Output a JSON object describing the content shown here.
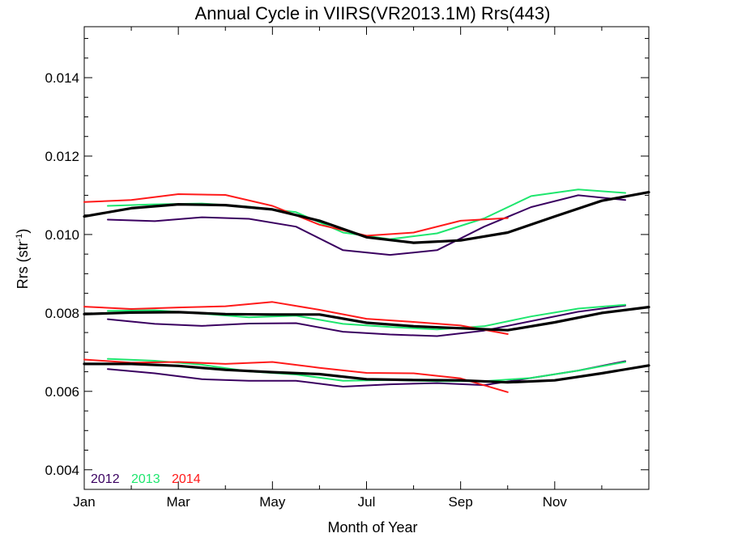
{
  "chart_data": {
    "type": "line",
    "title": "Annual Cycle in VIIRS(VR2013.1M) Rrs(443)",
    "xlabel": "Month of Year",
    "ylabel_main": "Rrs (str",
    "ylabel_sup": "-1",
    "ylabel_close": ")",
    "xlim": [
      0,
      12
    ],
    "ylim": [
      0.0035,
      0.0153
    ],
    "x_ticks": [
      {
        "value": 0,
        "label": "Jan"
      },
      {
        "value": 2,
        "label": "Mar"
      },
      {
        "value": 4,
        "label": "May"
      },
      {
        "value": 6,
        "label": "Jul"
      },
      {
        "value": 8,
        "label": "Sep"
      },
      {
        "value": 10,
        "label": "Nov"
      }
    ],
    "y_ticks": [
      {
        "value": 0.004,
        "label": "0.004"
      },
      {
        "value": 0.006,
        "label": "0.006"
      },
      {
        "value": 0.008,
        "label": "0.008"
      },
      {
        "value": 0.01,
        "label": "0.010"
      },
      {
        "value": 0.012,
        "label": "0.012"
      },
      {
        "value": 0.014,
        "label": "0.014"
      }
    ],
    "legend_position": "bottom-left",
    "series": [
      {
        "name": "2012",
        "color": "#3a0060",
        "width": 2,
        "groups": [
          {
            "x": [
              0.5,
              1.5,
              2.5,
              3.5,
              4.5,
              5.5,
              6.5,
              7.5,
              8.5,
              9.5,
              10.5,
              11.5
            ],
            "y": [
              0.01038,
              0.01034,
              0.01044,
              0.0104,
              0.0102,
              0.0096,
              0.00948,
              0.0096,
              0.0102,
              0.0107,
              0.011,
              0.01088
            ]
          },
          {
            "x": [
              0.5,
              1.5,
              2.5,
              3.5,
              4.5,
              5.5,
              6.5,
              7.5,
              8.5,
              9.5,
              10.5,
              11.5
            ],
            "y": [
              0.00784,
              0.00772,
              0.00767,
              0.00773,
              0.00774,
              0.00752,
              0.00745,
              0.00741,
              0.00755,
              0.00779,
              0.00803,
              0.00819
            ]
          },
          {
            "x": [
              0.5,
              1.5,
              2.5,
              3.5,
              4.5,
              5.5,
              6.5,
              7.5,
              8.5,
              9.5,
              10.5,
              11.5
            ],
            "y": [
              0.00657,
              0.00646,
              0.00631,
              0.00627,
              0.00627,
              0.00612,
              0.00618,
              0.00621,
              0.00616,
              0.00634,
              0.00653,
              0.00677
            ]
          }
        ]
      },
      {
        "name": "2013",
        "color": "#1ee66e",
        "width": 2,
        "groups": [
          {
            "x": [
              0.5,
              1.5,
              2.5,
              3.5,
              4.5,
              5.5,
              6.5,
              7.5,
              8.5,
              9.5,
              10.5,
              11.5
            ],
            "y": [
              0.01073,
              0.01077,
              0.01079,
              0.01071,
              0.01057,
              0.01005,
              0.00988,
              0.01003,
              0.01041,
              0.01098,
              0.01115,
              0.01106
            ]
          },
          {
            "x": [
              0.5,
              1.5,
              2.5,
              3.5,
              4.5,
              5.5,
              6.5,
              7.5,
              8.5,
              9.5,
              10.5,
              11.5
            ],
            "y": [
              0.00805,
              0.00807,
              0.00798,
              0.00789,
              0.00793,
              0.00772,
              0.00764,
              0.00758,
              0.00766,
              0.00791,
              0.00811,
              0.00821
            ]
          },
          {
            "x": [
              0.5,
              1.5,
              2.5,
              3.5,
              4.5,
              5.5,
              6.5,
              7.5,
              8.5,
              9.5,
              10.5,
              11.5
            ],
            "y": [
              0.00683,
              0.00678,
              0.00668,
              0.00651,
              0.00643,
              0.00627,
              0.00629,
              0.00626,
              0.00626,
              0.00634,
              0.00653,
              0.00675
            ]
          }
        ]
      },
      {
        "name": "2014",
        "color": "#ff1a1a",
        "width": 2,
        "groups": [
          {
            "x": [
              0,
              1,
              2,
              3,
              4,
              5,
              6,
              7,
              8,
              9
            ],
            "y": [
              0.01083,
              0.01088,
              0.01103,
              0.01101,
              0.01073,
              0.01025,
              0.00997,
              0.01005,
              0.01035,
              0.01042
            ]
          },
          {
            "x": [
              0,
              1,
              2,
              3,
              4,
              5,
              6,
              7,
              8,
              9
            ],
            "y": [
              0.00816,
              0.0081,
              0.00814,
              0.00817,
              0.00828,
              0.00808,
              0.00785,
              0.00777,
              0.00768,
              0.00746
            ]
          },
          {
            "x": [
              0,
              1,
              2,
              3,
              4,
              5,
              6,
              7,
              8,
              9
            ],
            "y": [
              0.00681,
              0.00673,
              0.00675,
              0.0067,
              0.00675,
              0.0066,
              0.00647,
              0.00646,
              0.00633,
              0.00598
            ]
          }
        ]
      },
      {
        "name": "",
        "color": "#000000",
        "width": 3.2,
        "groups": [
          {
            "x": [
              0,
              1,
              2,
              3,
              4,
              5,
              6,
              7,
              8,
              9,
              10,
              11,
              12
            ],
            "y": [
              0.01046,
              0.01067,
              0.01077,
              0.01075,
              0.01064,
              0.01035,
              0.00993,
              0.00979,
              0.00985,
              0.01005,
              0.01046,
              0.01086,
              0.01108
            ]
          },
          {
            "x": [
              0,
              1,
              2,
              3,
              4,
              5,
              6,
              7,
              8,
              9,
              10,
              11,
              12
            ],
            "y": [
              0.00797,
              0.00801,
              0.00802,
              0.00797,
              0.00796,
              0.00796,
              0.00775,
              0.00766,
              0.00761,
              0.00756,
              0.00776,
              0.008,
              0.00815
            ]
          },
          {
            "x": [
              0,
              1,
              2,
              3,
              4,
              5,
              6,
              7,
              8,
              9,
              10,
              11,
              12
            ],
            "y": [
              0.0067,
              0.0067,
              0.00665,
              0.00655,
              0.00649,
              0.00644,
              0.00631,
              0.00629,
              0.00628,
              0.00623,
              0.00628,
              0.00646,
              0.00666
            ]
          }
        ]
      }
    ],
    "legend": [
      {
        "label": "2012",
        "color": "#3a0060"
      },
      {
        "label": "2013",
        "color": "#1ee66e"
      },
      {
        "label": "2014",
        "color": "#ff1a1a"
      }
    ]
  }
}
